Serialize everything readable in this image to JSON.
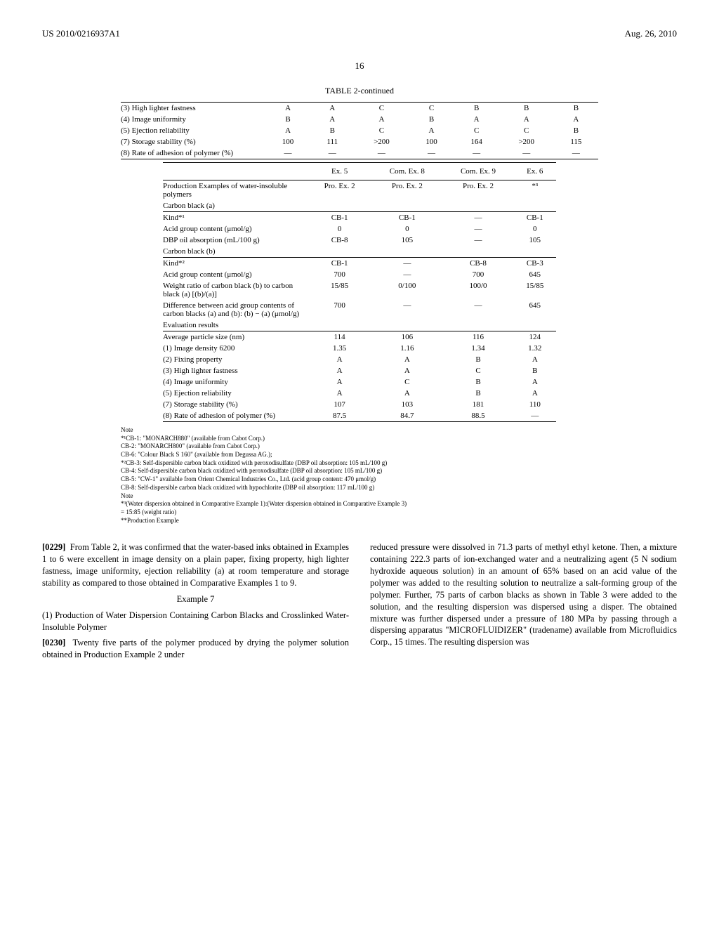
{
  "header": {
    "left": "US 2010/0216937A1",
    "right": "Aug. 26, 2010",
    "page_number": "16"
  },
  "table1": {
    "title": "TABLE 2-continued",
    "rows": [
      {
        "label": "(3) High lighter fastness",
        "v": [
          "A",
          "A",
          "C",
          "C",
          "B",
          "B",
          "B"
        ]
      },
      {
        "label": "(4) Image uniformity",
        "v": [
          "B",
          "A",
          "A",
          "B",
          "A",
          "A",
          "A"
        ]
      },
      {
        "label": "(5) Ejection reliability",
        "v": [
          "A",
          "B",
          "C",
          "A",
          "C",
          "C",
          "B"
        ]
      },
      {
        "label": "(7) Storage stability (%)",
        "v": [
          "100",
          "111",
          ">200",
          "100",
          "164",
          ">200",
          "115"
        ]
      },
      {
        "label": "(8) Rate of adhesion of polymer (%)",
        "v": [
          "—",
          "—",
          "—",
          "—",
          "—",
          "—",
          "—"
        ]
      }
    ]
  },
  "table2": {
    "col_headers": [
      "Ex. 5",
      "Com. Ex. 8",
      "Com. Ex. 9",
      "Ex. 6"
    ],
    "rows": [
      {
        "label": "Production Examples of water-insoluble polymers",
        "v": [
          "Pro. Ex. 2",
          "Pro. Ex. 2",
          "Pro. Ex. 2",
          "*³"
        ]
      },
      {
        "label": "Carbon black (a)",
        "section": true
      },
      {
        "label": "Kind*¹",
        "v": [
          "CB-1",
          "CB-1",
          "—",
          "CB-1"
        ]
      },
      {
        "label": "Acid group content (μmol/g)",
        "v": [
          "0",
          "0",
          "—",
          "0"
        ]
      },
      {
        "label": "DBP oil absorption (mL/100 g)",
        "v": [
          "CB-8",
          "105",
          "—",
          "105"
        ]
      },
      {
        "label": "Carbon black (b)",
        "section": true
      },
      {
        "label": "Kind*²",
        "v": [
          "CB-1",
          "—",
          "CB-8",
          "CB-3"
        ]
      },
      {
        "label": "Acid group content (μmol/g)",
        "v": [
          "700",
          "—",
          "700",
          "645"
        ]
      },
      {
        "label": "Weight ratio of carbon black (b) to carbon black (a) [(b)/(a)]",
        "v": [
          "15/85",
          "0/100",
          "100/0",
          "15/85"
        ]
      },
      {
        "label": "Difference between acid group contents of carbon blacks (a) and (b): (b) − (a) (μmol/g)",
        "v": [
          "700",
          "—",
          "—",
          "645"
        ]
      },
      {
        "label": "Evaluation results",
        "section": true
      },
      {
        "label": "Average particle size (nm)",
        "v": [
          "114",
          "106",
          "116",
          "124"
        ]
      },
      {
        "label": "(1) Image density 6200",
        "v": [
          "1.35",
          "1.16",
          "1.34",
          "1.32"
        ]
      },
      {
        "label": "(2) Fixing property",
        "v": [
          "A",
          "A",
          "B",
          "A"
        ]
      },
      {
        "label": "(3) High lighter fastness",
        "v": [
          "A",
          "A",
          "C",
          "B"
        ]
      },
      {
        "label": "(4) Image uniformity",
        "v": [
          "A",
          "C",
          "B",
          "A"
        ]
      },
      {
        "label": "(5) Ejection reliability",
        "v": [
          "A",
          "A",
          "B",
          "A"
        ]
      },
      {
        "label": "(7) Storage stability (%)",
        "v": [
          "107",
          "103",
          "181",
          "110"
        ]
      },
      {
        "label": "(8) Rate of adhesion of polymer (%)",
        "v": [
          "87.5",
          "84.7",
          "88.5",
          "—"
        ]
      }
    ]
  },
  "notes": {
    "lines": [
      "Note",
      "*¹CB-1: \"MONARCH880\" (available from Cabot Corp.)",
      "CB-2: \"MONARCH800\" (available from Cabot Corp.)",
      "CB-6: \"Colour Black S 160\" (available from Degussa AG.);",
      "*²CB-3: Self-dispersible carbon black oxidized with peroxodisulfate (DBP oil absorption: 105 mL/100 g)",
      "CB-4: Self-dispersible carbon black oxidized with peroxodisulfate (DBP oil absorption: 105 mL/100 g)",
      "CB-5: \"CW-1\" available from Orient Chemical Industries Co., Ltd. (acid group content: 470 μmol/g)",
      "CB-8: Self-dispersible carbon black oxidized with hypochlorite (DBP oil absorption: 117 mL/100 g)",
      "Note",
      "*³(Water dispersion obtained in Comparative Example 1):(Water dispersion obtained in Comparative Example 3)",
      "= 15:85 (weight ratio)",
      "**Production Example"
    ]
  },
  "body": {
    "p1_num": "[0229]",
    "p1": "From Table 2, it was confirmed that the water-based inks obtained in Examples 1 to 6 were excellent in image density on a plain paper, fixing property, high lighter fastness, image uniformity, ejection reliability (a) at room temperature and storage stability as compared to those obtained in Comparative Examples 1 to 9.",
    "example_title": "Example 7",
    "sub_heading": "(1) Production of Water Dispersion Containing Carbon Blacks and Crosslinked Water-Insoluble Polymer",
    "p2_num": "[0230]",
    "p2_left": "Twenty five parts of the polymer produced by drying the polymer solution obtained in Production Example 2 under",
    "p2_right": "reduced pressure were dissolved in 71.3 parts of methyl ethyl ketone. Then, a mixture containing 222.3 parts of ion-exchanged water and a neutralizing agent (5 N sodium hydroxide aqueous solution) in an amount of 65% based on an acid value of the polymer was added to the resulting solution to neutralize a salt-forming group of the polymer. Further, 75 parts of carbon blacks as shown in Table 3 were added to the solution, and the resulting dispersion was dispersed using a disper. The obtained mixture was further dispersed under a pressure of 180 MPa by passing through a dispersing apparatus \"MICROFLUIDIZER\" (tradename) available from Microfluidics Corp., 15 times. The resulting dispersion was"
  }
}
